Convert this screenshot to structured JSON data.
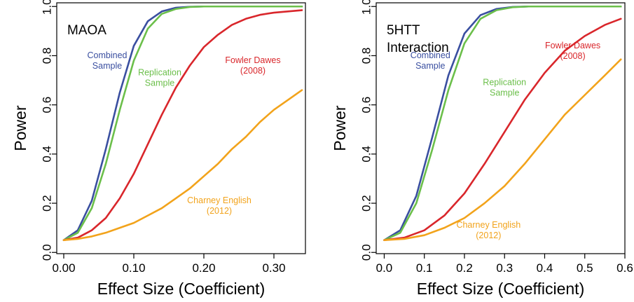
{
  "colors": {
    "combined": "#3a4fa0",
    "replication": "#6bbf4a",
    "fowler": "#d9262b",
    "charney": "#f2a31b",
    "axis": "#000000"
  },
  "chart_data": [
    {
      "type": "line",
      "title_lines": [
        "MAOA"
      ],
      "xlabel": "Effect Size (Coefficient)",
      "ylabel": "Power",
      "xlim": [
        -0.01,
        0.345
      ],
      "ylim": [
        -0.005,
        1.015
      ],
      "xticks": [
        0.0,
        0.1,
        0.2,
        0.3
      ],
      "xtick_labels": [
        "0.00",
        "0.10",
        "0.20",
        "0.30"
      ],
      "yticks": [
        0.0,
        0.2,
        0.4,
        0.6,
        0.8,
        1.0
      ],
      "ytick_labels": [
        "0.0",
        "0.2",
        "0.4",
        "0.6",
        "0.8",
        "1.0"
      ],
      "grid": false,
      "series": [
        {
          "key": "combined",
          "label_lines": [
            "Combined",
            "Sample"
          ],
          "color_key": "combined",
          "x": [
            0.0,
            0.02,
            0.04,
            0.06,
            0.08,
            0.1,
            0.12,
            0.14,
            0.16,
            0.18,
            0.2,
            0.22,
            0.25,
            0.3,
            0.34
          ],
          "y": [
            0.05,
            0.09,
            0.21,
            0.42,
            0.65,
            0.84,
            0.94,
            0.98,
            0.995,
            0.999,
            1.0,
            1.0,
            1.0,
            1.0,
            1.0
          ]
        },
        {
          "key": "replication",
          "label_lines": [
            "Replication",
            "Sample"
          ],
          "color_key": "replication",
          "x": [
            0.0,
            0.02,
            0.04,
            0.06,
            0.08,
            0.1,
            0.12,
            0.14,
            0.16,
            0.18,
            0.2,
            0.22,
            0.25,
            0.3,
            0.34
          ],
          "y": [
            0.05,
            0.08,
            0.18,
            0.36,
            0.58,
            0.78,
            0.91,
            0.97,
            0.99,
            0.998,
            1.0,
            1.0,
            1.0,
            1.0,
            1.0
          ]
        },
        {
          "key": "fowler",
          "label_lines": [
            "Fowler Dawes",
            "(2008)"
          ],
          "color_key": "fowler",
          "x": [
            0.0,
            0.02,
            0.04,
            0.06,
            0.08,
            0.1,
            0.12,
            0.14,
            0.16,
            0.18,
            0.2,
            0.22,
            0.24,
            0.26,
            0.28,
            0.3,
            0.32,
            0.34
          ],
          "y": [
            0.05,
            0.06,
            0.09,
            0.14,
            0.22,
            0.32,
            0.44,
            0.56,
            0.67,
            0.76,
            0.835,
            0.885,
            0.925,
            0.95,
            0.966,
            0.975,
            0.98,
            0.985
          ]
        },
        {
          "key": "charney",
          "label_lines": [
            "Charney English",
            "(2012)"
          ],
          "color_key": "charney",
          "x": [
            0.0,
            0.02,
            0.04,
            0.06,
            0.08,
            0.1,
            0.12,
            0.14,
            0.16,
            0.18,
            0.2,
            0.22,
            0.24,
            0.26,
            0.28,
            0.3,
            0.32,
            0.34
          ],
          "y": [
            0.05,
            0.055,
            0.065,
            0.08,
            0.1,
            0.12,
            0.15,
            0.18,
            0.22,
            0.26,
            0.31,
            0.36,
            0.42,
            0.47,
            0.53,
            0.58,
            0.62,
            0.66
          ]
        }
      ],
      "annotations": [
        {
          "series": "combined",
          "x": 0.062,
          "y": 0.79
        },
        {
          "series": "replication",
          "x": 0.137,
          "y": 0.72
        },
        {
          "series": "fowler",
          "x": 0.27,
          "y": 0.77
        },
        {
          "series": "charney",
          "x": 0.222,
          "y": 0.2
        }
      ]
    },
    {
      "type": "line",
      "title_lines": [
        "5HTT",
        "Interaction"
      ],
      "xlabel": "Effect Size (Coefficient)",
      "ylabel": "Power",
      "xlim": [
        -0.02,
        0.6
      ],
      "ylim": [
        -0.005,
        1.015
      ],
      "xticks": [
        0.0,
        0.1,
        0.2,
        0.3,
        0.4,
        0.5,
        0.6
      ],
      "xtick_labels": [
        "0.0",
        "0.1",
        "0.2",
        "0.3",
        "0.4",
        "0.5",
        "0.6"
      ],
      "yticks": [
        0.0,
        0.2,
        0.4,
        0.6,
        0.8,
        1.0
      ],
      "ytick_labels": [
        "0.0",
        "0.2",
        "0.4",
        "0.6",
        "0.8",
        "1.0"
      ],
      "grid": false,
      "series": [
        {
          "key": "combined",
          "label_lines": [
            "Combined",
            "Sample"
          ],
          "color_key": "combined",
          "x": [
            0.0,
            0.04,
            0.08,
            0.12,
            0.16,
            0.2,
            0.24,
            0.28,
            0.32,
            0.36,
            0.4,
            0.45,
            0.5,
            0.59
          ],
          "y": [
            0.05,
            0.09,
            0.23,
            0.47,
            0.72,
            0.89,
            0.965,
            0.99,
            0.998,
            1.0,
            1.0,
            1.0,
            1.0,
            1.0
          ]
        },
        {
          "key": "replication",
          "label_lines": [
            "Replication",
            "Sample"
          ],
          "color_key": "replication",
          "x": [
            0.0,
            0.04,
            0.08,
            0.12,
            0.16,
            0.2,
            0.24,
            0.28,
            0.32,
            0.36,
            0.4,
            0.45,
            0.5,
            0.59
          ],
          "y": [
            0.05,
            0.08,
            0.2,
            0.42,
            0.66,
            0.85,
            0.95,
            0.985,
            0.997,
            1.0,
            1.0,
            1.0,
            1.0,
            1.0
          ]
        },
        {
          "key": "fowler",
          "label_lines": [
            "Fowler Dawes",
            "(2008)"
          ],
          "color_key": "fowler",
          "x": [
            0.0,
            0.05,
            0.1,
            0.15,
            0.2,
            0.25,
            0.3,
            0.35,
            0.4,
            0.45,
            0.5,
            0.55,
            0.59
          ],
          "y": [
            0.05,
            0.06,
            0.09,
            0.15,
            0.24,
            0.36,
            0.49,
            0.62,
            0.73,
            0.82,
            0.88,
            0.925,
            0.95
          ]
        },
        {
          "key": "charney",
          "label_lines": [
            "Charney English",
            "(2012)"
          ],
          "color_key": "charney",
          "x": [
            0.0,
            0.05,
            0.1,
            0.15,
            0.2,
            0.25,
            0.3,
            0.35,
            0.4,
            0.45,
            0.5,
            0.55,
            0.59
          ],
          "y": [
            0.05,
            0.055,
            0.07,
            0.1,
            0.14,
            0.2,
            0.27,
            0.36,
            0.46,
            0.56,
            0.64,
            0.72,
            0.785
          ]
        }
      ],
      "annotations": [
        {
          "series": "combined",
          "x": 0.115,
          "y": 0.79
        },
        {
          "series": "replication",
          "x": 0.3,
          "y": 0.68
        },
        {
          "series": "fowler",
          "x": 0.47,
          "y": 0.83
        },
        {
          "series": "charney",
          "x": 0.26,
          "y": 0.1
        }
      ]
    }
  ]
}
